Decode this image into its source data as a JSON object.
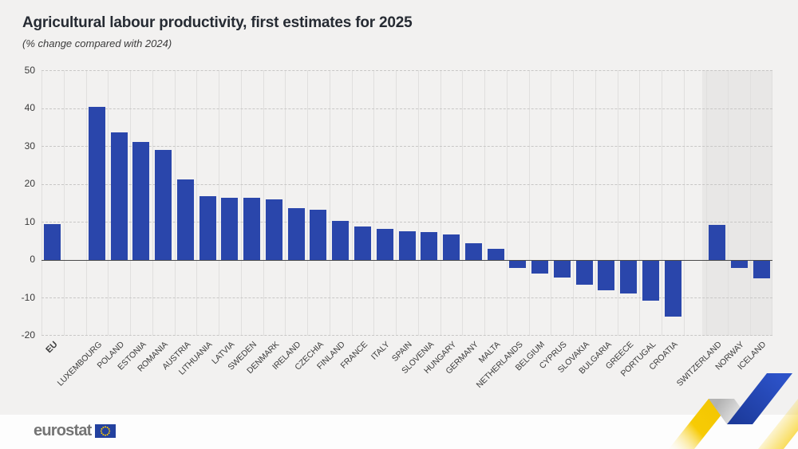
{
  "title": "Agricultural labour productivity, first estimates for 2025",
  "subtitle": "(% change compared with 2024)",
  "footer": {
    "logo_text": "eurostat",
    "flag_icon": "eu-flag-icon",
    "ribbon_icon": "eurostat-zigzag-ribbon"
  },
  "chart_data": {
    "type": "bar",
    "title": "Agricultural labour productivity, first estimates for 2025",
    "subtitle": "(% change compared with 2024)",
    "xlabel": "",
    "ylabel": "% change compared with 2024",
    "ylim": [
      -20,
      50
    ],
    "yticks": [
      50,
      40,
      30,
      20,
      10,
      0,
      -10,
      -20
    ],
    "grid": "horizontal dashed gridlines, vertical solid category separators",
    "legend_position": "none",
    "bar_color": "#2a46ab",
    "highlight_region_color": "#e8e7e6",
    "highlight_region_members": [
      "SWITZERLAND",
      "NORWAY",
      "ICELAND"
    ],
    "items": [
      {
        "label": "EU",
        "value": 9.5,
        "group": "eu"
      },
      {
        "label": "LUXEMBOURG",
        "value": 40.3,
        "group": "member"
      },
      {
        "label": "POLAND",
        "value": 33.5,
        "group": "member"
      },
      {
        "label": "ESTONIA",
        "value": 31.0,
        "group": "member"
      },
      {
        "label": "ROMANIA",
        "value": 29.0,
        "group": "member"
      },
      {
        "label": "AUSTRIA",
        "value": 21.3,
        "group": "member"
      },
      {
        "label": "LITHUANIA",
        "value": 16.8,
        "group": "member"
      },
      {
        "label": "LATVIA",
        "value": 16.4,
        "group": "member"
      },
      {
        "label": "SWEDEN",
        "value": 16.3,
        "group": "member"
      },
      {
        "label": "DENMARK",
        "value": 15.9,
        "group": "member"
      },
      {
        "label": "IRELAND",
        "value": 13.7,
        "group": "member"
      },
      {
        "label": "CZECHIA",
        "value": 13.3,
        "group": "member"
      },
      {
        "label": "FINLAND",
        "value": 10.3,
        "group": "member"
      },
      {
        "label": "FRANCE",
        "value": 8.9,
        "group": "member"
      },
      {
        "label": "ITALY",
        "value": 8.1,
        "group": "member"
      },
      {
        "label": "SPAIN",
        "value": 7.6,
        "group": "member"
      },
      {
        "label": "SLOVENIA",
        "value": 7.4,
        "group": "member"
      },
      {
        "label": "HUNGARY",
        "value": 6.6,
        "group": "member"
      },
      {
        "label": "GERMANY",
        "value": 4.4,
        "group": "member"
      },
      {
        "label": "MALTA",
        "value": 2.9,
        "group": "member"
      },
      {
        "label": "NETHERLANDS",
        "value": -2.0,
        "group": "member"
      },
      {
        "label": "BELGIUM",
        "value": -3.5,
        "group": "member"
      },
      {
        "label": "CYPRUS",
        "value": -4.5,
        "group": "member"
      },
      {
        "label": "SLOVAKIA",
        "value": -6.4,
        "group": "member"
      },
      {
        "label": "BULGARIA",
        "value": -7.9,
        "group": "member"
      },
      {
        "label": "GREECE",
        "value": -8.6,
        "group": "member"
      },
      {
        "label": "PORTUGAL",
        "value": -10.5,
        "group": "member"
      },
      {
        "label": "CROATIA",
        "value": -14.8,
        "group": "member"
      },
      {
        "label": "SWITZERLAND",
        "value": 9.3,
        "group": "efta"
      },
      {
        "label": "NORWAY",
        "value": -1.9,
        "group": "efta"
      },
      {
        "label": "ICELAND",
        "value": -4.6,
        "group": "efta"
      }
    ]
  },
  "colors": {
    "page_bg": "#f2f1f0",
    "footer_bg": "#fdfdfd",
    "bar": "#2a46ab",
    "efta_shade": "#e8e7e6",
    "ribbon_yellow": "#f7c905",
    "ribbon_blue": "#2146b4",
    "flag_blue": "#23419f",
    "flag_star_yellow": "#ffcc00"
  }
}
